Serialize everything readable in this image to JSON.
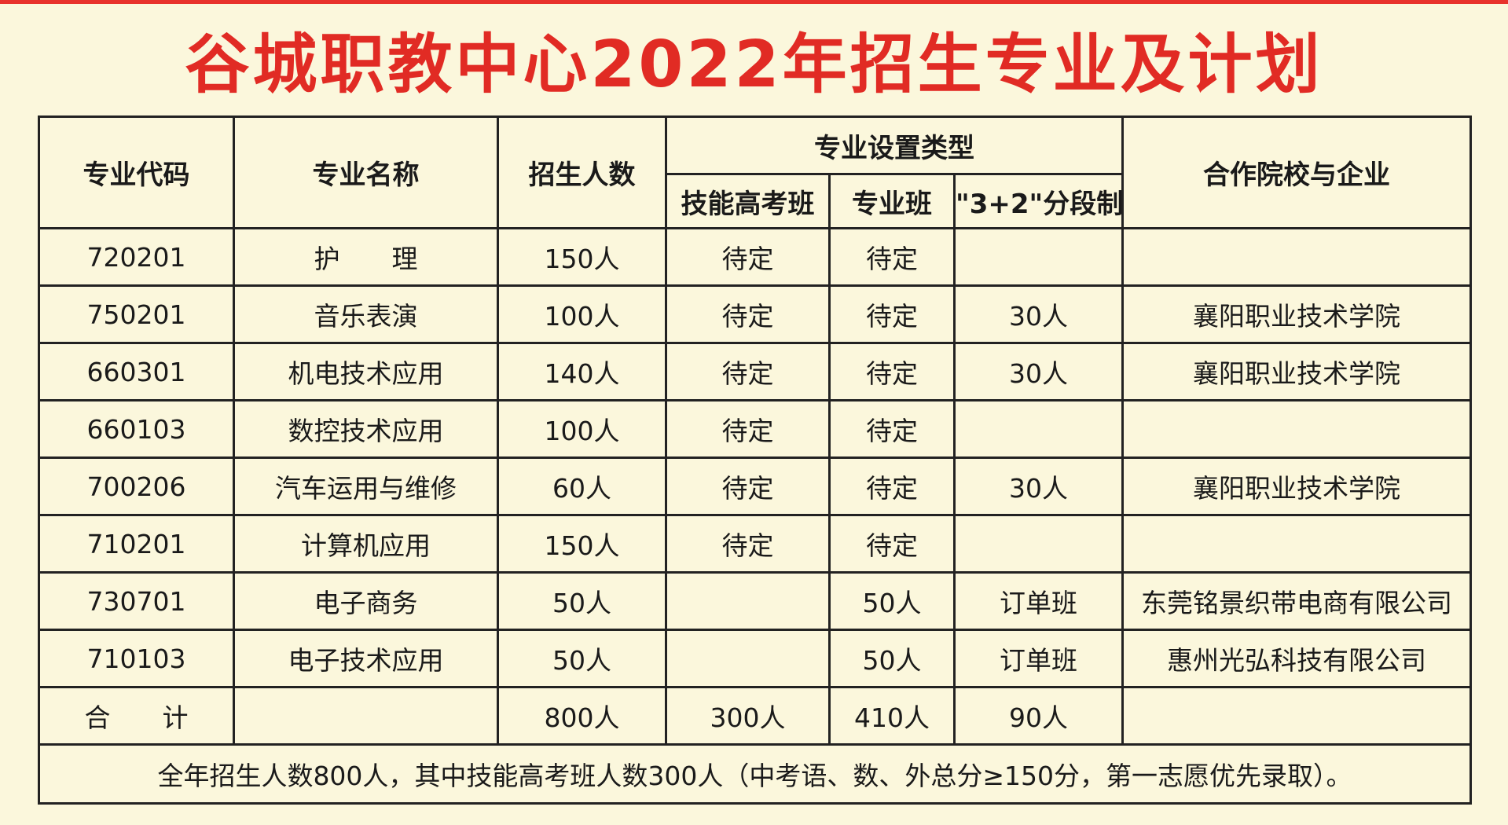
{
  "title": "谷城职教中心2022年招生专业及计划",
  "table": {
    "headers": {
      "code": "专业代码",
      "name": "专业名称",
      "enroll": "招生人数",
      "type_group": "专业设置类型",
      "skill_exam": "技能高考班",
      "major_class": "专业班",
      "segmented": "\"3+2\"分段制",
      "partner": "合作院校与企业"
    },
    "rows": [
      {
        "code": "720201",
        "name": "护　　理",
        "enroll": "150人",
        "skill": "待定",
        "major": "待定",
        "seg": "",
        "partner": ""
      },
      {
        "code": "750201",
        "name": "音乐表演",
        "enroll": "100人",
        "skill": "待定",
        "major": "待定",
        "seg": "30人",
        "partner": "襄阳职业技术学院"
      },
      {
        "code": "660301",
        "name": "机电技术应用",
        "enroll": "140人",
        "skill": "待定",
        "major": "待定",
        "seg": "30人",
        "partner": "襄阳职业技术学院"
      },
      {
        "code": "660103",
        "name": "数控技术应用",
        "enroll": "100人",
        "skill": "待定",
        "major": "待定",
        "seg": "",
        "partner": ""
      },
      {
        "code": "700206",
        "name": "汽车运用与维修",
        "enroll": "60人",
        "skill": "待定",
        "major": "待定",
        "seg": "30人",
        "partner": "襄阳职业技术学院"
      },
      {
        "code": "710201",
        "name": "计算机应用",
        "enroll": "150人",
        "skill": "待定",
        "major": "待定",
        "seg": "",
        "partner": ""
      },
      {
        "code": "730701",
        "name": "电子商务",
        "enroll": "50人",
        "skill": "",
        "major": "50人",
        "seg": "订单班",
        "partner": "东莞铭景织带电商有限公司"
      },
      {
        "code": "710103",
        "name": "电子技术应用",
        "enroll": "50人",
        "skill": "",
        "major": "50人",
        "seg": "订单班",
        "partner": "惠州光弘科技有限公司"
      }
    ],
    "total": {
      "label": "合　　计",
      "name": "",
      "enroll": "800人",
      "skill": "300人",
      "major": "410人",
      "seg": "90人",
      "partner": ""
    },
    "note": "全年招生人数800人，其中技能高考班人数300人（中考语、数、外总分≥150分，第一志愿优先录取）。"
  },
  "colors": {
    "title": "#e12b24",
    "background": "#fbf7dc",
    "border": "#222222"
  }
}
